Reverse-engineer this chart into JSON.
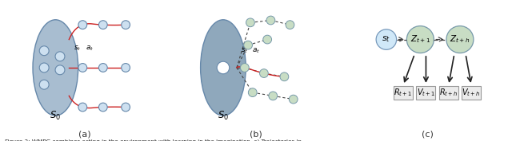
{
  "fig_width": 6.4,
  "fig_height": 1.77,
  "dpi": 100,
  "caption": "Figure 3: WMPG combines acting in the environment with learning in the imagination. a) Trajectories in",
  "subfig_labels": [
    "(a)",
    "(b)",
    "(c)"
  ],
  "ellipse_color_a": "#a8bdd0",
  "ellipse_color_b": "#8fa8bc",
  "node_blue_light": "#cde0f0",
  "node_green_light": "#c8ddc4",
  "node_st_color": "#d0e8f8",
  "arrow_red": "#cc2222",
  "box_color": "#ebebeb",
  "box_edge": "#999999"
}
